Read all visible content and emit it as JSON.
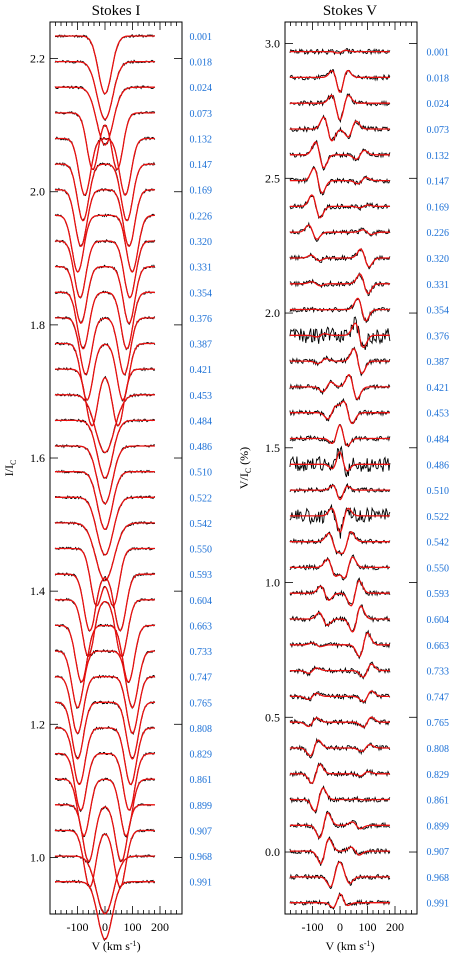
{
  "colors": {
    "observed": "#000000",
    "model": "#e8100f",
    "phase_label": "#1a6fd6"
  },
  "chart_data": [
    {
      "type": "line",
      "title": "Stokes I",
      "xlabel": "V (km s",
      "xlabel_sup": "-1",
      "xlabel_end": ")",
      "ylabel": "I/I",
      "ylabel_sub": "C",
      "xlim": [
        -200,
        280
      ],
      "ylim": [
        0.915,
        2.255
      ],
      "x_ticks": [
        -100,
        0,
        100,
        200
      ],
      "x_tick_labels": [
        "-100",
        "0",
        "100",
        "200"
      ],
      "y_ticks": [
        1.0,
        1.2,
        1.4,
        1.6,
        1.8,
        2.0,
        2.2
      ],
      "y_tick_labels": [
        "1.0",
        "1.2",
        "1.4",
        "1.6",
        "1.8",
        "2.0",
        "2.2"
      ],
      "offset_start": 2.234,
      "offset_step": -0.0385,
      "series_kind": [
        "observed",
        "model"
      ]
    },
    {
      "type": "line",
      "title": "Stokes V",
      "xlabel": "V (km s",
      "xlabel_sup": "-1",
      "xlabel_end": ")",
      "ylabel": "V/I",
      "ylabel_sub": "C",
      "ylabel_end": " (%)",
      "xlim": [
        -200,
        280
      ],
      "ylim": [
        -0.23,
        3.08
      ],
      "x_ticks": [
        -100,
        0,
        100,
        200
      ],
      "x_tick_labels": [
        "-100",
        "0",
        "100",
        "200"
      ],
      "y_ticks": [
        0.0,
        0.5,
        1.0,
        1.5,
        2.0,
        2.5,
        3.0
      ],
      "y_tick_labels": [
        "0.0",
        "0.5",
        "1.0",
        "1.5",
        "2.0",
        "2.5",
        "3.0"
      ],
      "offset_start": 2.97,
      "offset_step": -0.0957,
      "series_kind": [
        "observed",
        "model"
      ]
    }
  ],
  "phases": [
    "0.001",
    "0.018",
    "0.024",
    "0.073",
    "0.132",
    "0.147",
    "0.169",
    "0.226",
    "0.320",
    "0.331",
    "0.354",
    "0.376",
    "0.387",
    "0.421",
    "0.453",
    "0.484",
    "0.486",
    "0.510",
    "0.522",
    "0.542",
    "0.550",
    "0.593",
    "0.604",
    "0.663",
    "0.733",
    "0.747",
    "0.765",
    "0.808",
    "0.829",
    "0.861",
    "0.899",
    "0.907",
    "0.968",
    "0.991"
  ]
}
